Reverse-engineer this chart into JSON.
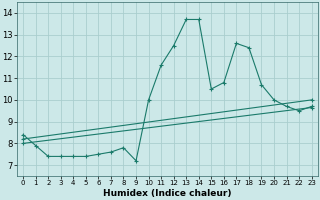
{
  "xlabel": "Humidex (Indice chaleur)",
  "ylabel": "",
  "xlim": [
    -0.5,
    23.5
  ],
  "ylim": [
    6.5,
    14.5
  ],
  "xticks": [
    0,
    1,
    2,
    3,
    4,
    5,
    6,
    7,
    8,
    9,
    10,
    11,
    12,
    13,
    14,
    15,
    16,
    17,
    18,
    19,
    20,
    21,
    22,
    23
  ],
  "yticks": [
    7,
    8,
    9,
    10,
    11,
    12,
    13,
    14
  ],
  "bg_color": "#cce8e8",
  "line_color": "#1a7a6a",
  "grid_color": "#aacece",
  "line1_x": [
    0,
    1,
    2,
    3,
    4,
    5,
    6,
    7,
    8,
    9,
    10,
    11,
    12,
    13,
    14,
    15,
    16,
    17,
    18,
    19,
    20,
    21,
    22,
    23
  ],
  "line1_y": [
    8.4,
    7.9,
    7.4,
    7.4,
    7.4,
    7.4,
    7.5,
    7.6,
    7.8,
    7.2,
    10.0,
    11.6,
    12.5,
    13.7,
    13.7,
    10.5,
    10.8,
    12.6,
    12.4,
    10.7,
    10.0,
    9.7,
    9.5,
    9.7
  ],
  "line2_x": [
    0,
    23
  ],
  "line2_y": [
    8.2,
    10.0
  ],
  "line3_x": [
    0,
    23
  ],
  "line3_y": [
    8.0,
    9.65
  ]
}
